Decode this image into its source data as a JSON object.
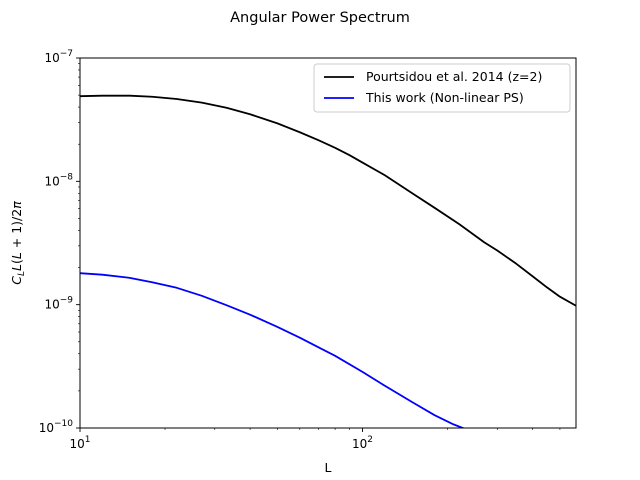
{
  "chart_data": {
    "type": "line",
    "title": "Angular Power Spectrum",
    "xlabel": "L",
    "ylabel": "C_L L(L+1)/2π",
    "xscale": "log",
    "yscale": "log",
    "xlim": [
      10,
      570
    ],
    "ylim": [
      1e-10,
      1e-07
    ],
    "grid": false,
    "legend_position": "top-right",
    "x_ticks": [
      {
        "value": 10,
        "base": "10",
        "exp": "1"
      },
      {
        "value": 100,
        "base": "10",
        "exp": "2"
      }
    ],
    "y_ticks": [
      {
        "value": 1e-10,
        "base": "10",
        "exp": "−10"
      },
      {
        "value": 1e-09,
        "base": "10",
        "exp": "−9"
      },
      {
        "value": 1e-08,
        "base": "10",
        "exp": "−8"
      },
      {
        "value": 1e-07,
        "base": "10",
        "exp": "−7"
      }
    ],
    "series": [
      {
        "name": "Pourtsidou et al. 2014 (z=2)",
        "color": "#000000",
        "x": [
          10,
          12,
          15,
          18,
          22,
          27,
          33,
          40,
          50,
          60,
          70,
          80,
          90,
          100,
          120,
          150,
          180,
          220,
          270,
          300,
          350,
          400,
          450,
          500,
          570
        ],
        "y": [
          4.9e-08,
          4.95e-08,
          4.95e-08,
          4.85e-08,
          4.65e-08,
          4.35e-08,
          3.95e-08,
          3.5e-08,
          2.95e-08,
          2.5e-08,
          2.15e-08,
          1.87e-08,
          1.63e-08,
          1.42e-08,
          1.12e-08,
          8e-09,
          6.1e-09,
          4.5e-09,
          3.2e-09,
          2.75e-09,
          2.15e-09,
          1.7e-09,
          1.38e-09,
          1.16e-09,
          9.8e-10
        ]
      },
      {
        "name": "This work (Non-linear PS)",
        "color": "#0000ff",
        "x": [
          10,
          12,
          15,
          18,
          22,
          27,
          33,
          40,
          50,
          60,
          70,
          80,
          100,
          120,
          150,
          180,
          210,
          240
        ],
        "y": [
          1.8e-09,
          1.75e-09,
          1.65e-09,
          1.52e-09,
          1.37e-09,
          1.18e-09,
          9.9e-10,
          8.3e-10,
          6.6e-10,
          5.4e-10,
          4.5e-10,
          3.85e-10,
          2.85e-10,
          2.2e-10,
          1.62e-10,
          1.27e-10,
          1.07e-10,
          9.5e-11
        ]
      }
    ]
  }
}
